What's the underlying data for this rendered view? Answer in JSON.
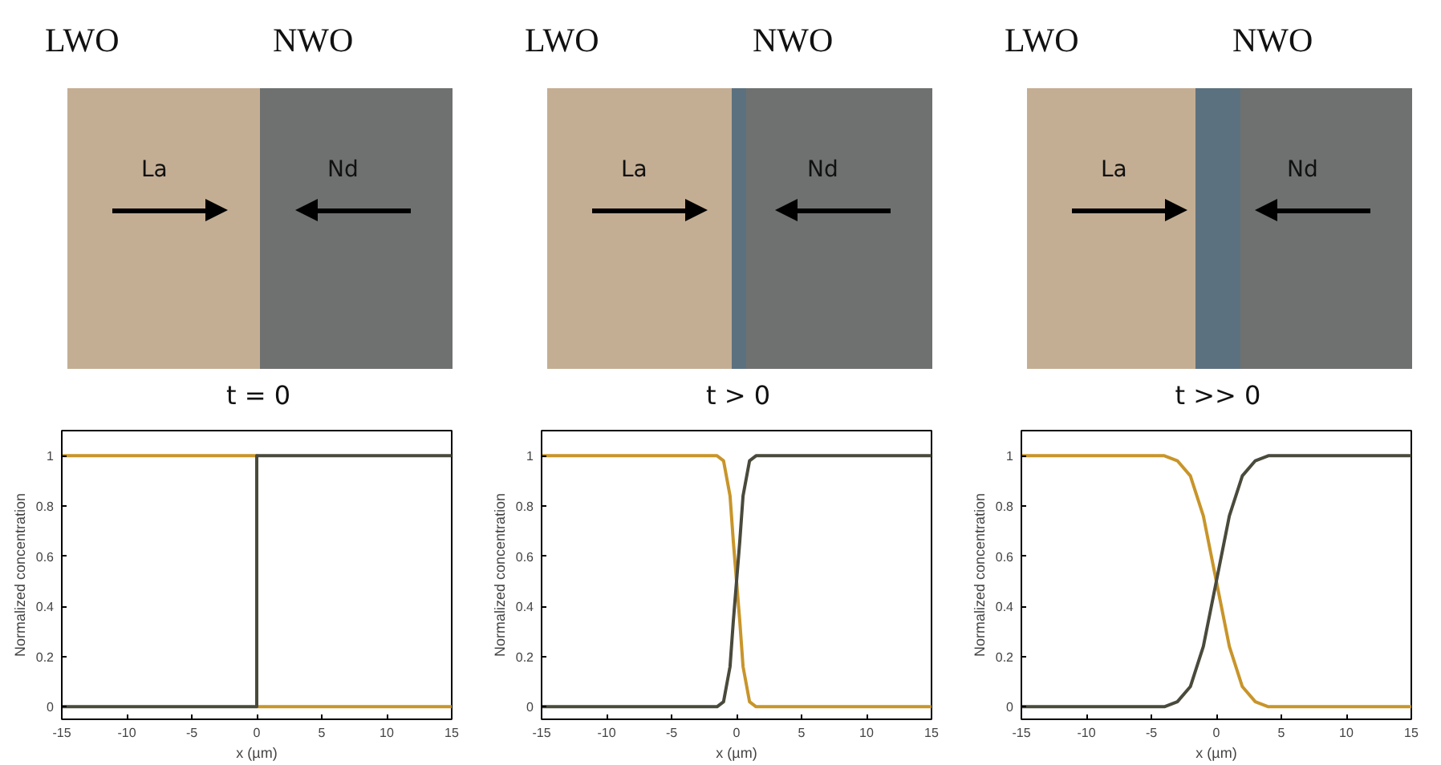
{
  "chart_data": [
    {
      "type": "line",
      "annotations": [
        "LWO",
        "NWO",
        "La",
        "Nd",
        "t = 0"
      ],
      "xlabel": "x (µm)",
      "ylabel": "Normalized concentration",
      "xlim": [
        -15,
        15
      ],
      "ylim": [
        -0.05,
        1.1
      ],
      "xticks": [
        -15,
        -10,
        -5,
        0,
        5,
        10,
        15
      ],
      "yticks": [
        0,
        0.2,
        0.4,
        0.6,
        0.8,
        1
      ],
      "series": [
        {
          "color": "#c8952a",
          "x": [
            -15,
            0,
            0,
            15
          ],
          "values": [
            1,
            1,
            0,
            0
          ]
        },
        {
          "color": "#4a4a3c",
          "x": [
            -15,
            0,
            0,
            15
          ],
          "values": [
            0,
            0,
            1,
            1
          ]
        }
      ]
    },
    {
      "type": "line",
      "annotations": [
        "LWO",
        "NWO",
        "La",
        "Nd",
        "t > 0"
      ],
      "xlabel": "x (µm)",
      "ylabel": "Normalized concentration",
      "xlim": [
        -15,
        15
      ],
      "ylim": [
        -0.05,
        1.1
      ],
      "xticks": [
        -15,
        -10,
        -5,
        0,
        5,
        10,
        15
      ],
      "yticks": [
        0,
        0.2,
        0.4,
        0.6,
        0.8,
        1
      ],
      "series": [
        {
          "color": "#c8952a",
          "x": [
            -15,
            -1.5,
            -1,
            -0.5,
            -0.25,
            0,
            0.25,
            0.5,
            1,
            1.5,
            15
          ],
          "values": [
            1,
            1,
            0.98,
            0.84,
            0.66,
            0.5,
            0.34,
            0.16,
            0.02,
            0,
            0
          ]
        },
        {
          "color": "#4a4a3c",
          "x": [
            -15,
            -1.5,
            -1,
            -0.5,
            -0.25,
            0,
            0.25,
            0.5,
            1,
            1.5,
            15
          ],
          "values": [
            0,
            0,
            0.02,
            0.16,
            0.34,
            0.5,
            0.66,
            0.84,
            0.98,
            1,
            1
          ]
        }
      ]
    },
    {
      "type": "line",
      "annotations": [
        "LWO",
        "NWO",
        "La",
        "Nd",
        "t >> 0"
      ],
      "xlabel": "x (µm)",
      "ylabel": "Normalized concentration",
      "xlim": [
        -15,
        15
      ],
      "ylim": [
        -0.05,
        1.1
      ],
      "xticks": [
        -15,
        -10,
        -5,
        0,
        5,
        10,
        15
      ],
      "yticks": [
        0,
        0.2,
        0.4,
        0.6,
        0.8,
        1
      ],
      "series": [
        {
          "color": "#c8952a",
          "x": [
            -15,
            -4,
            -3,
            -2,
            -1,
            0,
            1,
            2,
            3,
            4,
            15
          ],
          "values": [
            1,
            1,
            0.98,
            0.92,
            0.76,
            0.5,
            0.24,
            0.08,
            0.02,
            0,
            0
          ]
        },
        {
          "color": "#4a4a3c",
          "x": [
            -15,
            -4,
            -3,
            -2,
            -1,
            0,
            1,
            2,
            3,
            4,
            15
          ],
          "values": [
            0,
            0,
            0.02,
            0.08,
            0.24,
            0.5,
            0.76,
            0.92,
            0.98,
            1,
            1
          ]
        }
      ]
    }
  ]
}
